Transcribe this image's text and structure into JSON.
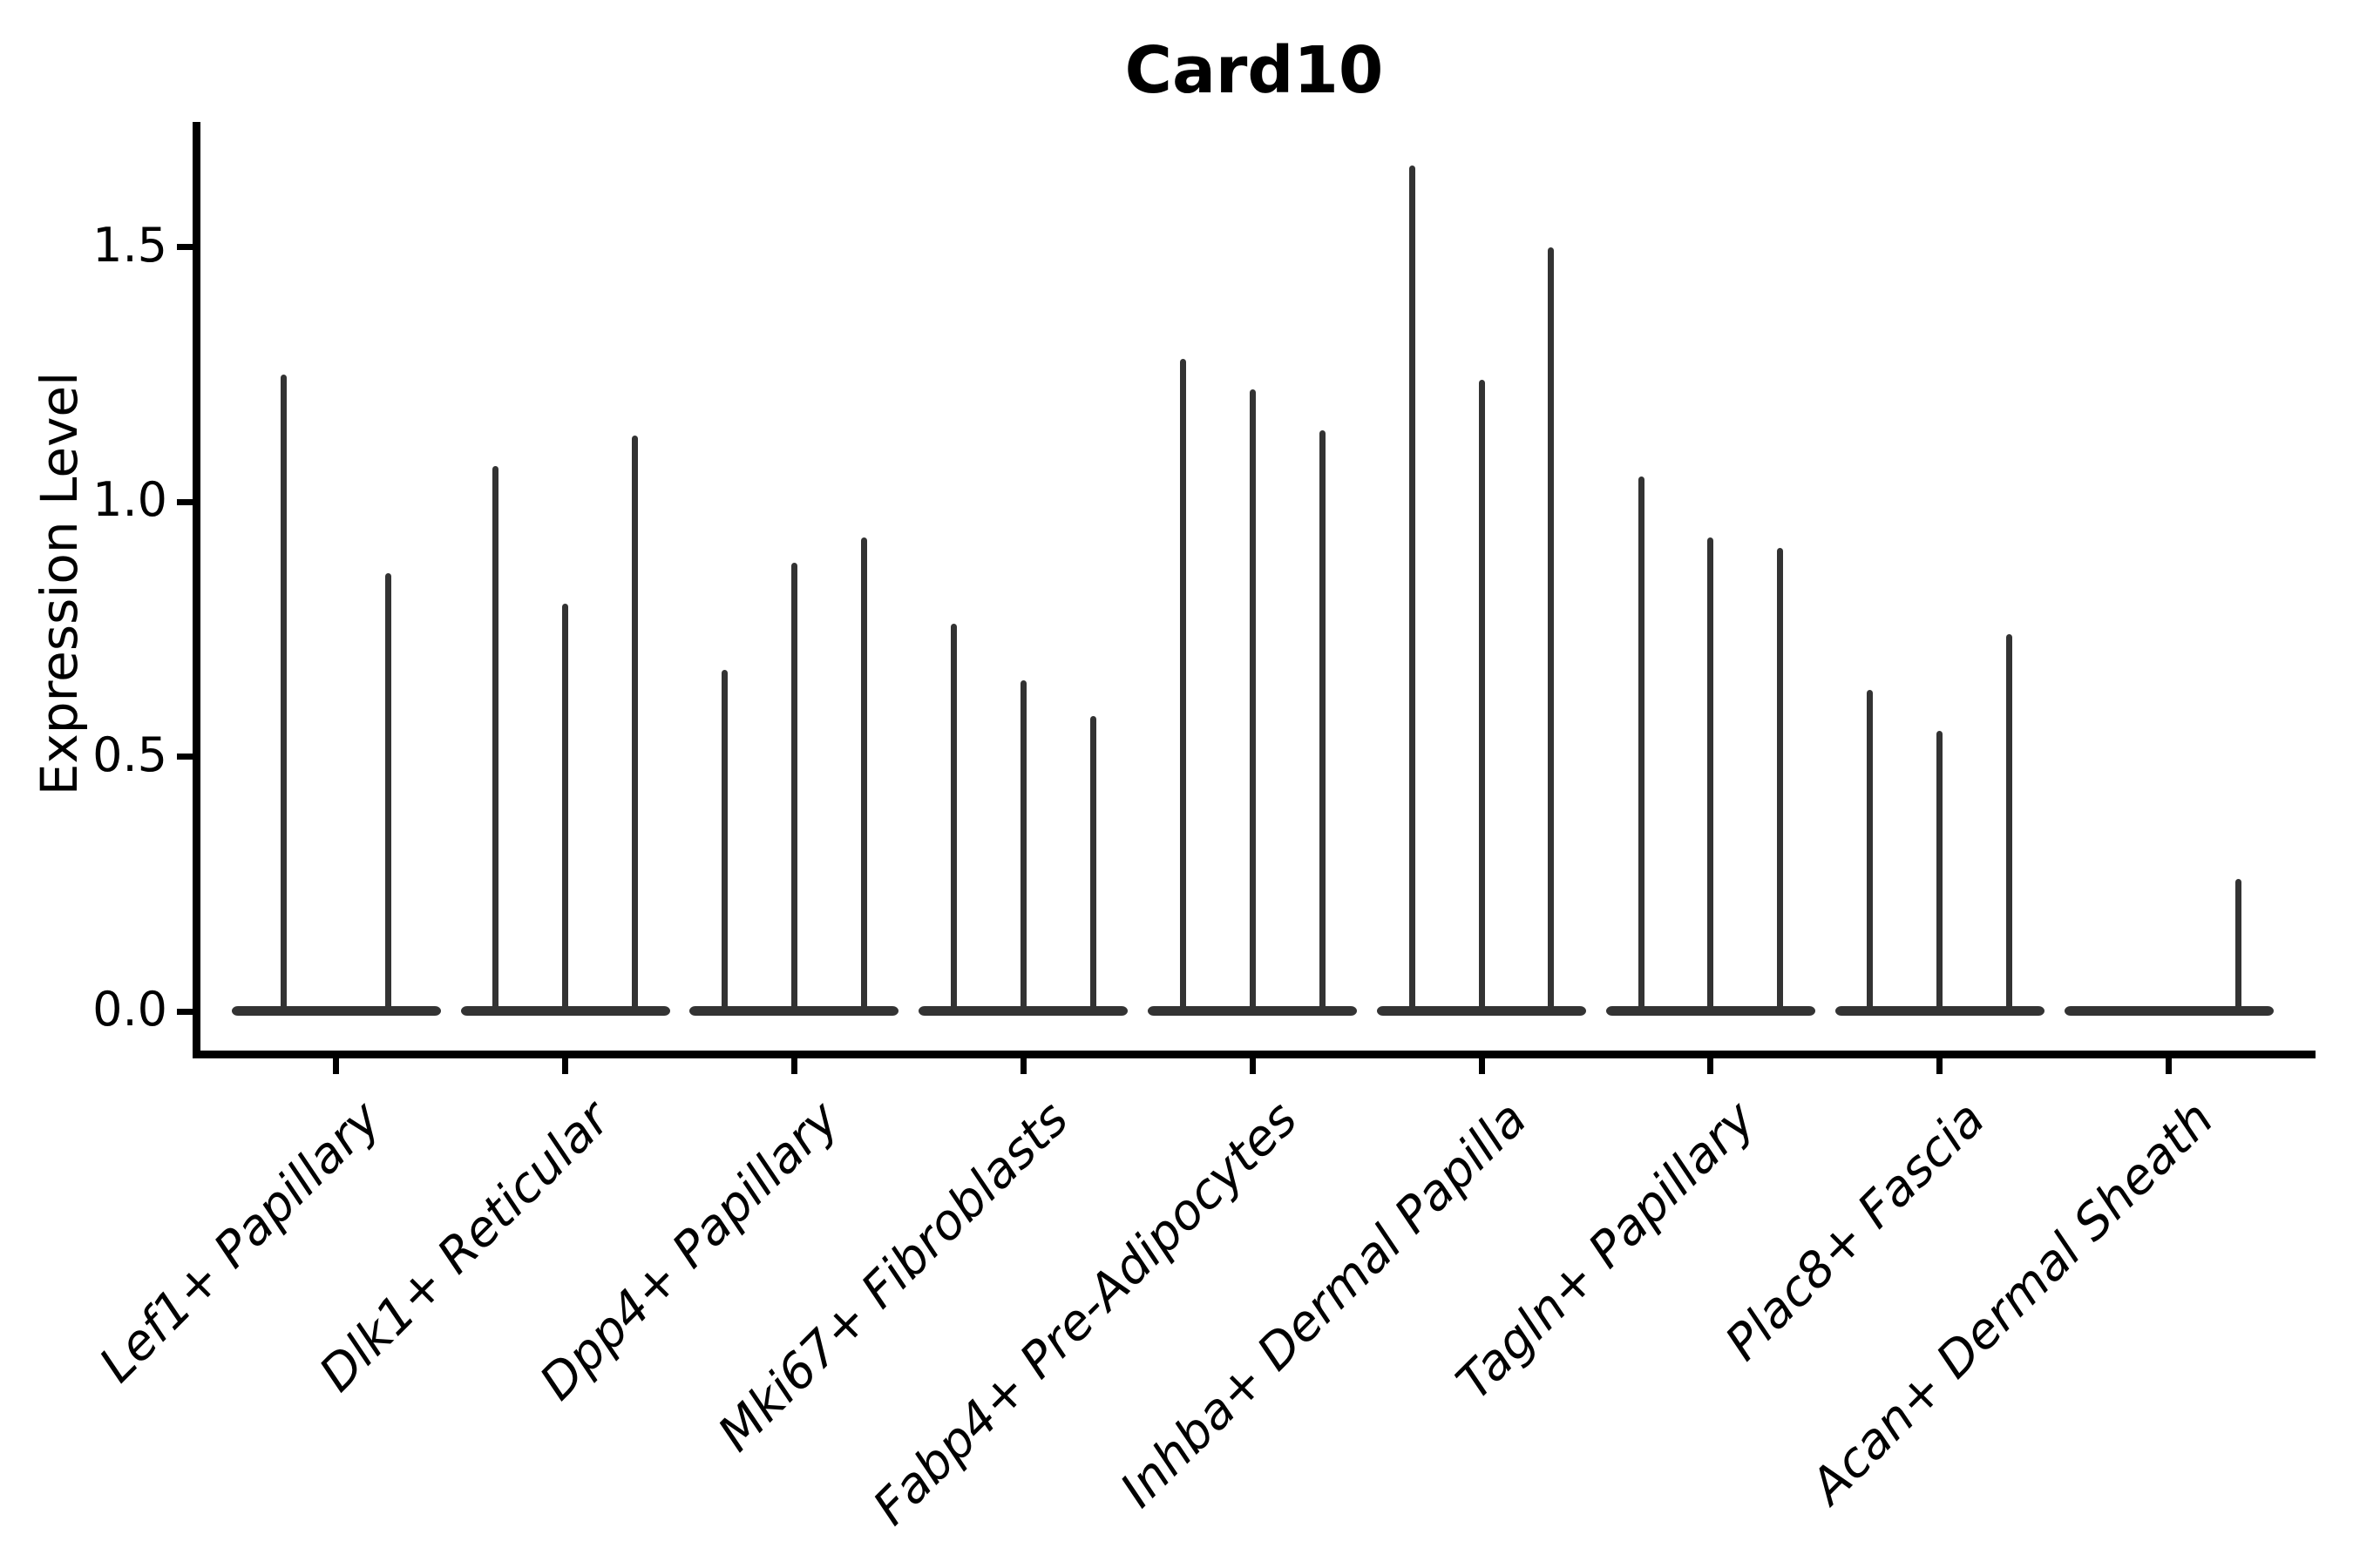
{
  "chart_data": {
    "type": "violin",
    "title": "Card10",
    "ylabel": "Expression Level",
    "xlabel": "",
    "grid": false,
    "legend": "none",
    "ylim": [
      0,
      1.75
    ],
    "ytick_labels": [
      "0.0",
      "0.5",
      "1.0",
      "1.5"
    ],
    "ytick_values": [
      0.0,
      0.5,
      1.0,
      1.5
    ],
    "violin_color": "#333333",
    "axis_color": "#000000",
    "note": "zero-inflated violins: wide flat body at 0 with thin spike to max expression",
    "groups": [
      {
        "label": "Lef1+ Papillary",
        "violins": [
          {
            "slot": 0.25,
            "max": 1.25
          },
          {
            "slot": 0.75,
            "max": 0.86
          }
        ]
      },
      {
        "label": "Dlk1+ Reticular",
        "violins": [
          {
            "slot": 0.167,
            "max": 1.07
          },
          {
            "slot": 0.5,
            "max": 0.8
          },
          {
            "slot": 0.833,
            "max": 1.13
          }
        ]
      },
      {
        "label": "Dpp4+ Papillary",
        "violins": [
          {
            "slot": 0.167,
            "max": 0.67
          },
          {
            "slot": 0.5,
            "max": 0.88
          },
          {
            "slot": 0.833,
            "max": 0.93
          }
        ]
      },
      {
        "label": "Mki67+ Fibroblasts",
        "violins": [
          {
            "slot": 0.167,
            "max": 0.76
          },
          {
            "slot": 0.5,
            "max": 0.65
          },
          {
            "slot": 0.833,
            "max": 0.58
          }
        ]
      },
      {
        "label": "Fabp4+ Pre-Adipocytes",
        "violins": [
          {
            "slot": 0.167,
            "max": 1.28
          },
          {
            "slot": 0.5,
            "max": 1.22
          },
          {
            "slot": 0.833,
            "max": 1.14
          }
        ]
      },
      {
        "label": "Inhba+ Dermal Papilla",
        "violins": [
          {
            "slot": 0.167,
            "max": 1.66
          },
          {
            "slot": 0.5,
            "max": 1.24
          },
          {
            "slot": 0.833,
            "max": 1.5
          }
        ]
      },
      {
        "label": "Tagln+ Papillary",
        "violins": [
          {
            "slot": 0.167,
            "max": 1.05
          },
          {
            "slot": 0.5,
            "max": 0.93
          },
          {
            "slot": 0.833,
            "max": 0.91
          }
        ]
      },
      {
        "label": "Plac8+ Fascia",
        "violins": [
          {
            "slot": 0.167,
            "max": 0.63
          },
          {
            "slot": 0.5,
            "max": 0.55
          },
          {
            "slot": 0.833,
            "max": 0.74
          }
        ]
      },
      {
        "label": "Acan+ Dermal Sheath",
        "violins": [
          {
            "slot": 0.167,
            "max": 0.0
          },
          {
            "slot": 0.5,
            "max": 0.0
          },
          {
            "slot": 0.833,
            "max": 0.26
          }
        ]
      }
    ]
  }
}
